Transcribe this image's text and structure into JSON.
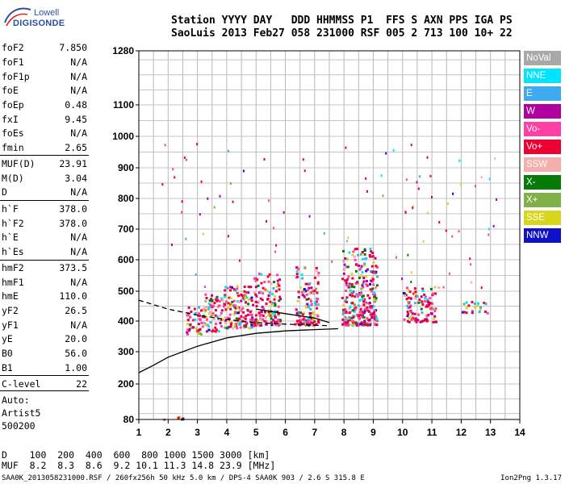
{
  "logo": {
    "line1": "Lowell",
    "line2": "DIGISONDE"
  },
  "header": {
    "line1": "Station YYYY DAY   DDD HHMMSS P1  FFS S AXN PPS IGA PS",
    "line2": "SaoLuis 2013 Feb27 058 231000 RSF 005 2 713 100 10+ 22"
  },
  "params": [
    {
      "k": "foF2",
      "v": "7.850"
    },
    {
      "k": "foF1",
      "v": "N/A"
    },
    {
      "k": "foF1p",
      "v": "N/A"
    },
    {
      "k": "foE",
      "v": "N/A"
    },
    {
      "k": "foEp",
      "v": "0.48"
    },
    {
      "k": "fxI",
      "v": "9.45"
    },
    {
      "k": "foEs",
      "v": "N/A"
    },
    {
      "k": "fmin",
      "v": "2.65"
    },
    {
      "k": "MUF(D)",
      "v": "23.91"
    },
    {
      "k": "M(D)",
      "v": "3.04"
    },
    {
      "k": "D",
      "v": "N/A"
    },
    {
      "k": "h`F",
      "v": "378.0"
    },
    {
      "k": "h`F2",
      "v": "378.0"
    },
    {
      "k": "h`E",
      "v": "N/A"
    },
    {
      "k": "h`Es",
      "v": "N/A"
    },
    {
      "k": "hmF2",
      "v": "373.5"
    },
    {
      "k": "hmF1",
      "v": "N/A"
    },
    {
      "k": "hmE",
      "v": "110.0"
    },
    {
      "k": "yF2",
      "v": "26.5"
    },
    {
      "k": "yF1",
      "v": "N/A"
    },
    {
      "k": "yE",
      "v": "20.0"
    },
    {
      "k": "B0",
      "v": "56.0"
    },
    {
      "k": "B1",
      "v": "1.00"
    },
    {
      "k": "C-level",
      "v": "22"
    }
  ],
  "auto": {
    "l1": "Auto:",
    "l2": "Artist5",
    "l3": "500200"
  },
  "legend": [
    {
      "label": "NoVal",
      "color": "#a8a8a8"
    },
    {
      "label": "NNE",
      "color": "#00e5ff"
    },
    {
      "label": "E",
      "color": "#3daaf2"
    },
    {
      "label": "W",
      "color": "#b0009e"
    },
    {
      "label": "Vo-",
      "color": "#ff3fa5"
    },
    {
      "label": "Vo+",
      "color": "#ee0033"
    },
    {
      "label": "SSW",
      "color": "#f4aeae"
    },
    {
      "label": "X-",
      "color": "#087a08"
    },
    {
      "label": "X+",
      "color": "#80b048"
    },
    {
      "label": "SSE",
      "color": "#d6d61c"
    },
    {
      "label": "NNW",
      "color": "#1010c8"
    }
  ],
  "bottom": {
    "l1": "D    100  200  400  600  800 1000 1500 3000 [km]",
    "l2": "MUF  8.2  8.3  8.6  9.2 10.1 11.3 14.8 23.9 [MHz]"
  },
  "footer": {
    "left": "SAA0K_2013058231000.RSF / 260fx256h 50 kHz 5.0 km / DPS-4 SAA0K 903 / 2.6 S 315.8 E",
    "right": "Ion2Png 1.3.17"
  },
  "chart_data": {
    "type": "scatter",
    "title": "",
    "xlabel": "",
    "ylabel": "",
    "xlim": [
      1,
      14
    ],
    "ylim": [
      80,
      1280
    ],
    "x_ticks": [
      1,
      2,
      3,
      4,
      5,
      6,
      7,
      8,
      9,
      10,
      11,
      12,
      13,
      14
    ],
    "y_ticks": [
      80,
      200,
      300,
      400,
      500,
      600,
      700,
      800,
      900,
      1000,
      1100,
      1280
    ],
    "y_scale": "nonlinear (ionogram virtual height)",
    "grid": true,
    "clusters": [
      {
        "x": [
          2.6,
          3.2
        ],
        "y": [
          360,
          450
        ],
        "density": 0.6
      },
      {
        "x": [
          3.2,
          3.8
        ],
        "y": [
          370,
          500
        ],
        "density": 0.6
      },
      {
        "x": [
          3.8,
          4.9
        ],
        "y": [
          380,
          520
        ],
        "density": 0.65
      },
      {
        "x": [
          4.9,
          5.8
        ],
        "y": [
          390,
          560
        ],
        "density": 0.55
      },
      {
        "x": [
          6.3,
          7.1
        ],
        "y": [
          390,
          580
        ],
        "density": 0.6
      },
      {
        "x": [
          7.9,
          9.1
        ],
        "y": [
          390,
          640
        ],
        "density": 0.7
      },
      {
        "x": [
          10.0,
          11.2
        ],
        "y": [
          400,
          520
        ],
        "density": 0.5
      },
      {
        "x": [
          12.0,
          13.0
        ],
        "y": [
          430,
          470
        ],
        "density": 0.35
      },
      {
        "x": [
          1.7,
          2.8
        ],
        "y": [
          82,
          95
        ],
        "density": 0.3
      }
    ],
    "curves": [
      {
        "name": "",
        "style": "solid",
        "x": [
          1.0,
          1.5,
          2.0,
          2.5,
          3.0,
          4.0,
          5.0,
          6.0,
          7.0,
          7.8
        ],
        "y": [
          235,
          258,
          283,
          300,
          318,
          345,
          360,
          368,
          372,
          375
        ]
      },
      {
        "name": "",
        "style": "dashed",
        "x": [
          1.0,
          2.0,
          3.0,
          4.0,
          5.0,
          6.0,
          7.0,
          7.5
        ],
        "y": [
          470,
          440,
          420,
          405,
          395,
          390,
          386,
          385
        ]
      },
      {
        "name": "",
        "style": "solid",
        "x": [
          5.0,
          6.0,
          7.0,
          7.5
        ],
        "y": [
          440,
          425,
          410,
          395
        ]
      }
    ]
  }
}
